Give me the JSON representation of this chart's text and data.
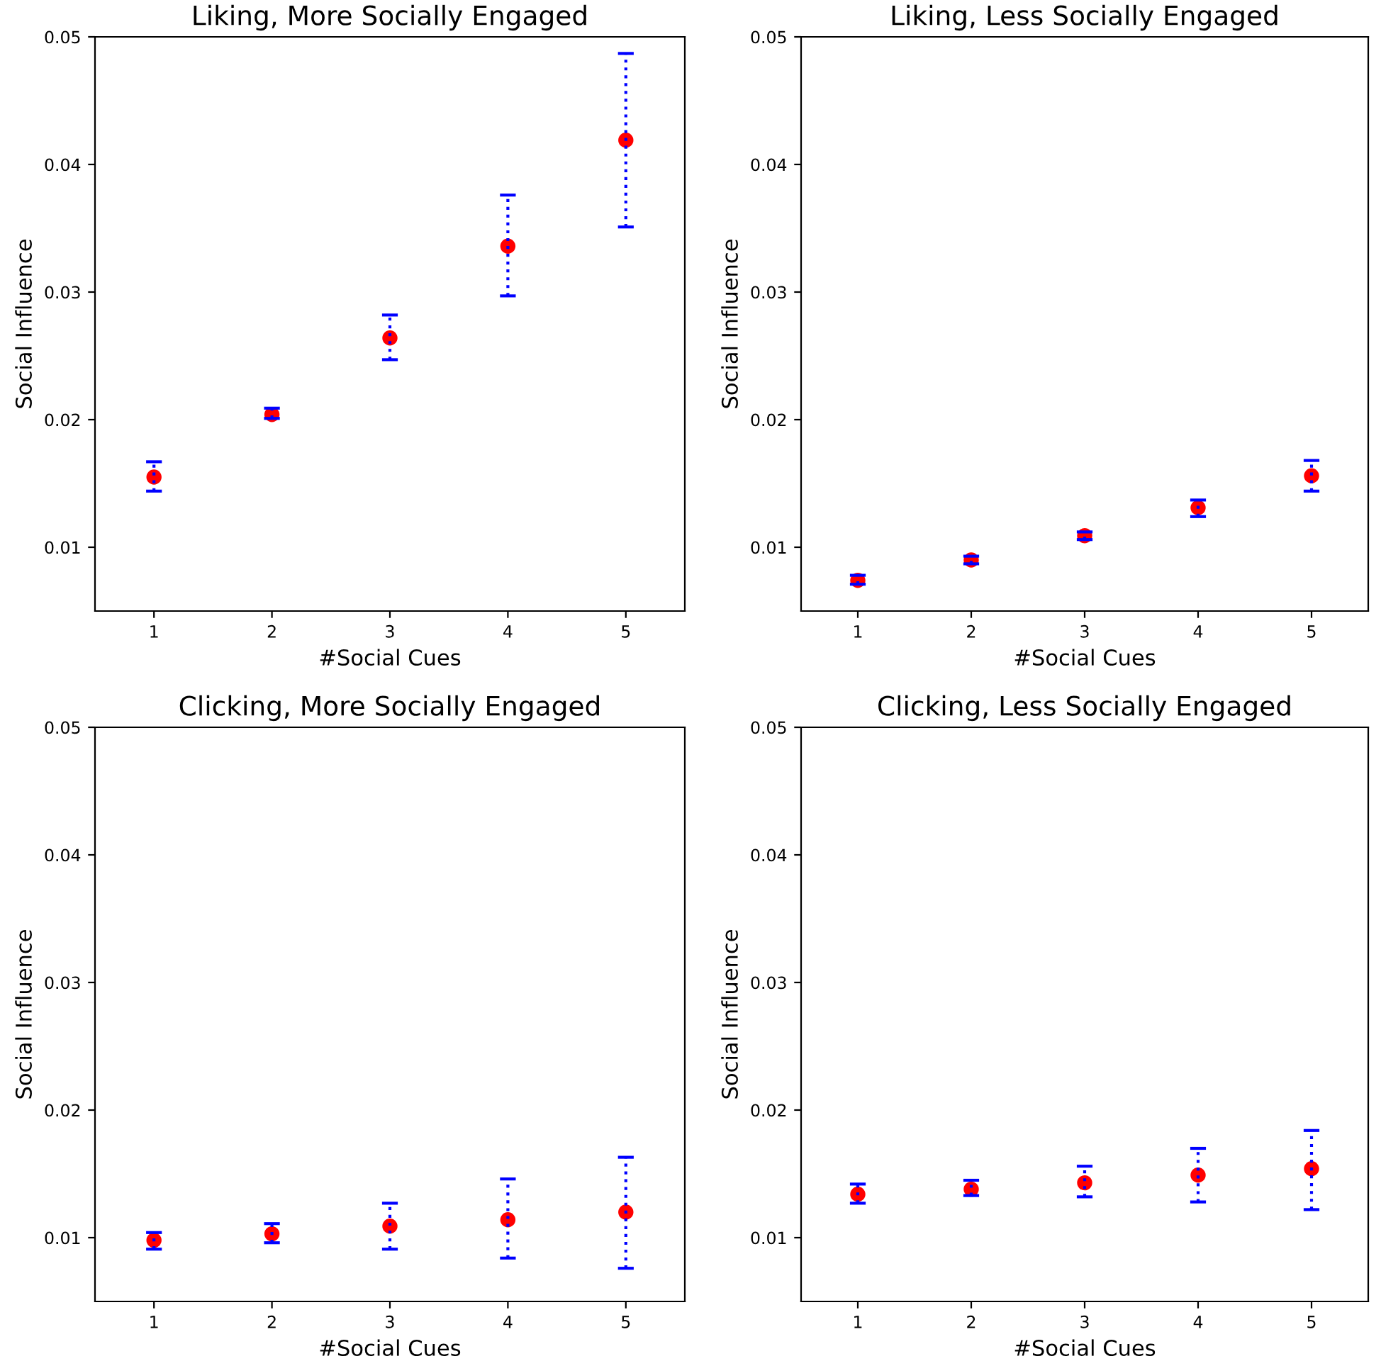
{
  "chart_data": [
    {
      "type": "scatter",
      "title": "Liking, More Socially Engaged",
      "xlabel": "#Social Cues",
      "ylabel": "Social Influence",
      "x": [
        1,
        2,
        3,
        4,
        5
      ],
      "xlim": [
        0.5,
        5.5
      ],
      "xticks": [
        1,
        2,
        3,
        4,
        5
      ],
      "ylim": [
        0.005,
        0.05
      ],
      "yticks": [
        0.01,
        0.02,
        0.03,
        0.04,
        0.05
      ],
      "marker": "circle",
      "grid": false,
      "series": [
        {
          "color": "#ff0000",
          "values": [
            0.0155,
            0.0204,
            0.0264,
            0.0336,
            0.0419
          ],
          "errors": [
            [
              0.0144,
              0.0167
            ],
            [
              0.0201,
              0.0209
            ],
            [
              0.0247,
              0.0282
            ],
            [
              0.0297,
              0.0376
            ],
            [
              0.0351,
              0.0487
            ]
          ]
        }
      ]
    },
    {
      "type": "scatter",
      "title": "Liking, Less Socially Engaged",
      "xlabel": "#Social Cues",
      "ylabel": "Social Influence",
      "x": [
        1,
        2,
        3,
        4,
        5
      ],
      "xlim": [
        0.5,
        5.5
      ],
      "xticks": [
        1,
        2,
        3,
        4,
        5
      ],
      "ylim": [
        0.005,
        0.05
      ],
      "yticks": [
        0.01,
        0.02,
        0.03,
        0.04,
        0.05
      ],
      "marker": "circle",
      "grid": false,
      "series": [
        {
          "color": "#ff0000",
          "values": [
            0.0074,
            0.009,
            0.0109,
            0.0131,
            0.0156
          ],
          "errors": [
            [
              0.0071,
              0.0078
            ],
            [
              0.0087,
              0.0093
            ],
            [
              0.0106,
              0.0112
            ],
            [
              0.0124,
              0.0137
            ],
            [
              0.0144,
              0.0168
            ]
          ]
        }
      ]
    },
    {
      "type": "scatter",
      "title": "Clicking, More Socially Engaged",
      "xlabel": "#Social Cues",
      "ylabel": "Social Influence",
      "x": [
        1,
        2,
        3,
        4,
        5
      ],
      "xlim": [
        0.5,
        5.5
      ],
      "xticks": [
        1,
        2,
        3,
        4,
        5
      ],
      "ylim": [
        0.005,
        0.05
      ],
      "yticks": [
        0.01,
        0.02,
        0.03,
        0.04,
        0.05
      ],
      "marker": "circle",
      "grid": false,
      "series": [
        {
          "color": "#ff0000",
          "values": [
            0.0098,
            0.0103,
            0.0109,
            0.0114,
            0.012
          ],
          "errors": [
            [
              0.0091,
              0.0104
            ],
            [
              0.0096,
              0.0111
            ],
            [
              0.0091,
              0.0127
            ],
            [
              0.0084,
              0.0146
            ],
            [
              0.0076,
              0.0163
            ]
          ]
        }
      ]
    },
    {
      "type": "scatter",
      "title": "Clicking, Less Socially Engaged",
      "xlabel": "#Social Cues",
      "ylabel": "Social Influence",
      "x": [
        1,
        2,
        3,
        4,
        5
      ],
      "xlim": [
        0.5,
        5.5
      ],
      "xticks": [
        1,
        2,
        3,
        4,
        5
      ],
      "ylim": [
        0.005,
        0.05
      ],
      "yticks": [
        0.01,
        0.02,
        0.03,
        0.04,
        0.05
      ],
      "marker": "circle",
      "grid": false,
      "series": [
        {
          "color": "#ff0000",
          "values": [
            0.0134,
            0.0138,
            0.0143,
            0.0149,
            0.0154
          ],
          "errors": [
            [
              0.0127,
              0.0142
            ],
            [
              0.0133,
              0.0145
            ],
            [
              0.0132,
              0.0156
            ],
            [
              0.0128,
              0.017
            ],
            [
              0.0122,
              0.0184
            ]
          ]
        }
      ]
    }
  ]
}
